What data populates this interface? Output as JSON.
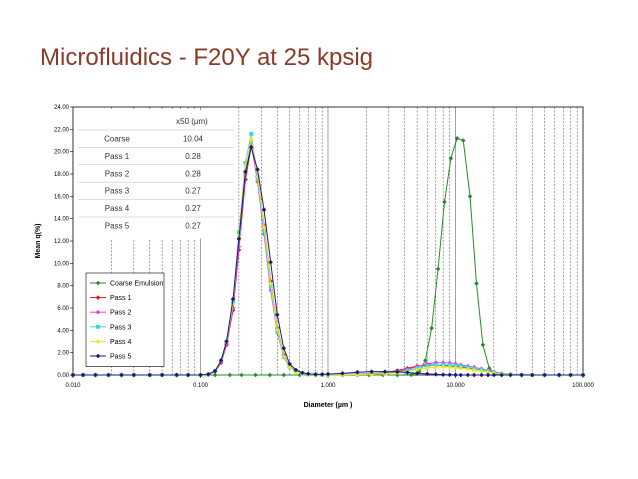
{
  "slide": {
    "title": "Microfluidics - F20Y at 25 kpsig"
  },
  "table": {
    "header": "x50 (µm)",
    "rows": [
      {
        "label": "Coarse",
        "value": "10.04"
      },
      {
        "label": "Pass 1",
        "value": "0.28"
      },
      {
        "label": "Pass 2",
        "value": "0.28"
      },
      {
        "label": "Pass 3",
        "value": "0.27"
      },
      {
        "label": "Pass 4",
        "value": "0.27"
      },
      {
        "label": "Pass 5",
        "value": "0.27"
      }
    ]
  },
  "chart_data": {
    "type": "line",
    "xscale": "log",
    "xlim": [
      0.01,
      100
    ],
    "ylim": [
      0,
      24
    ],
    "xlabel": "Diameter (µm )",
    "ylabel": "Mean q(%)",
    "x_tick_labels": [
      "0.010",
      "0.100",
      "1.000",
      "10.000",
      "100.000"
    ],
    "y_tick_labels": [
      "0.00",
      "2.00",
      "4.00",
      "6.00",
      "8.00",
      "10.00",
      "12.00",
      "14.00",
      "16.00",
      "18.00",
      "20.00",
      "22.00",
      "24.00"
    ],
    "grid": {
      "vertical": true,
      "vertical_style": "dashed",
      "horizontal": false
    },
    "legend_position": "left-middle",
    "series": [
      {
        "name": "Coarse Emulsion",
        "color": "#2a8a2a",
        "marker": "diamond",
        "x": [
          0.01,
          0.012,
          0.015,
          0.019,
          0.024,
          0.03,
          0.04,
          0.05,
          0.065,
          0.08,
          0.1,
          0.13,
          0.17,
          0.21,
          0.27,
          0.35,
          0.45,
          0.6,
          0.8,
          1,
          1.3,
          1.7,
          2.1,
          2.7,
          3.5,
          4.5,
          5.2,
          5.8,
          6.5,
          7.3,
          8.2,
          9.2,
          10.3,
          11.5,
          13,
          14.6,
          16.4,
          18.4,
          20.6,
          23,
          27,
          33,
          40,
          50,
          65,
          80,
          100
        ],
        "y": [
          0,
          0,
          0,
          0,
          0,
          0,
          0,
          0,
          0,
          0,
          0,
          0,
          0,
          0,
          0,
          0,
          0,
          0,
          0,
          0,
          0,
          0,
          0,
          0,
          0,
          0.02,
          0.3,
          1.3,
          4.2,
          9.5,
          15.5,
          19.4,
          21.2,
          21,
          16,
          8.2,
          2.7,
          0.6,
          0.08,
          0,
          0,
          0,
          0,
          0,
          0,
          0,
          0
        ]
      },
      {
        "name": "Pass 1",
        "color": "#d8141c",
        "marker": "diamond",
        "x": [
          0.01,
          0.012,
          0.015,
          0.019,
          0.024,
          0.03,
          0.04,
          0.05,
          0.065,
          0.08,
          0.1,
          0.115,
          0.13,
          0.145,
          0.16,
          0.18,
          0.2,
          0.225,
          0.25,
          0.28,
          0.315,
          0.355,
          0.4,
          0.45,
          0.5,
          0.56,
          0.63,
          0.7,
          0.8,
          0.9,
          1,
          1.3,
          1.7,
          2.2,
          2.8,
          3.5,
          4.2,
          5,
          6,
          7,
          8,
          9,
          10,
          11,
          12.5,
          14,
          16,
          18,
          20,
          23,
          27,
          33,
          40,
          50,
          65,
          80,
          100
        ],
        "y": [
          0,
          0,
          0,
          0,
          0,
          0,
          0,
          0,
          0,
          0,
          0,
          0.05,
          0.3,
          1.1,
          2.7,
          5.8,
          11.2,
          17.5,
          20.5,
          17.8,
          13.4,
          8.4,
          4.2,
          1.8,
          0.75,
          0.35,
          0.15,
          0.07,
          0.04,
          0.03,
          0.03,
          0.05,
          0.08,
          0.12,
          0.2,
          0.4,
          0.6,
          0.8,
          0.9,
          0.9,
          0.85,
          0.8,
          0.75,
          0.7,
          0.6,
          0.5,
          0.4,
          0.3,
          0.2,
          0.1,
          0.04,
          0.01,
          0,
          0,
          0,
          0,
          0
        ]
      },
      {
        "name": "Pass 2",
        "color": "#e23ce2",
        "marker": "diamond",
        "x": [
          0.01,
          0.012,
          0.015,
          0.019,
          0.024,
          0.03,
          0.04,
          0.05,
          0.065,
          0.08,
          0.1,
          0.115,
          0.13,
          0.145,
          0.16,
          0.18,
          0.2,
          0.225,
          0.25,
          0.28,
          0.315,
          0.355,
          0.4,
          0.45,
          0.5,
          0.56,
          0.63,
          0.7,
          0.8,
          0.9,
          1,
          1.3,
          1.7,
          2.2,
          2.8,
          3.5,
          4.2,
          5,
          6,
          7,
          8,
          9,
          10,
          11,
          12.5,
          14,
          16,
          18,
          20,
          23,
          27,
          33,
          40,
          50,
          65,
          80,
          100
        ],
        "y": [
          0,
          0,
          0,
          0,
          0,
          0,
          0,
          0,
          0,
          0,
          0,
          0.05,
          0.3,
          1.2,
          2.8,
          6,
          11.5,
          18,
          20.8,
          17.3,
          12.6,
          7.6,
          3.8,
          1.6,
          0.7,
          0.32,
          0.14,
          0.07,
          0.04,
          0.03,
          0.03,
          0.04,
          0.06,
          0.1,
          0.16,
          0.3,
          0.5,
          0.75,
          1,
          1.1,
          1.1,
          1.08,
          1.0,
          0.9,
          0.8,
          0.7,
          0.55,
          0.42,
          0.3,
          0.15,
          0.06,
          0.02,
          0,
          0,
          0,
          0,
          0
        ]
      },
      {
        "name": "Pass 3",
        "color": "#2ed8e8",
        "marker": "square",
        "x": [
          0.01,
          0.012,
          0.015,
          0.019,
          0.024,
          0.03,
          0.04,
          0.05,
          0.065,
          0.08,
          0.1,
          0.115,
          0.13,
          0.145,
          0.16,
          0.18,
          0.2,
          0.225,
          0.25,
          0.28,
          0.315,
          0.355,
          0.4,
          0.45,
          0.5,
          0.56,
          0.63,
          0.7,
          0.8,
          0.9,
          1,
          1.3,
          1.7,
          2.2,
          2.8,
          3.5,
          4.2,
          5,
          6,
          7,
          8,
          9,
          10,
          11,
          12.5,
          14,
          16,
          18,
          20,
          23,
          27,
          33,
          40,
          50,
          65,
          80,
          100
        ],
        "y": [
          0,
          0,
          0,
          0,
          0,
          0,
          0,
          0,
          0,
          0,
          0,
          0.06,
          0.35,
          1.3,
          3.0,
          6.5,
          12.8,
          19,
          21.6,
          17.6,
          12.9,
          7.9,
          3.9,
          1.6,
          0.7,
          0.3,
          0.13,
          0.06,
          0.03,
          0.02,
          0.02,
          0.03,
          0.05,
          0.08,
          0.14,
          0.25,
          0.4,
          0.6,
          0.8,
          0.9,
          0.92,
          0.9,
          0.85,
          0.78,
          0.68,
          0.58,
          0.45,
          0.33,
          0.22,
          0.1,
          0.04,
          0.01,
          0,
          0,
          0,
          0,
          0
        ]
      },
      {
        "name": "Pass 4",
        "color": "#e8e81c",
        "marker": "triangle",
        "x": [
          0.01,
          0.012,
          0.015,
          0.019,
          0.024,
          0.03,
          0.04,
          0.05,
          0.065,
          0.08,
          0.1,
          0.115,
          0.13,
          0.145,
          0.16,
          0.18,
          0.2,
          0.225,
          0.25,
          0.28,
          0.315,
          0.355,
          0.4,
          0.45,
          0.5,
          0.56,
          0.63,
          0.7,
          0.8,
          0.9,
          1,
          1.3,
          1.7,
          2.2,
          2.8,
          3.5,
          4.2,
          5,
          6,
          7,
          8,
          9,
          10,
          11,
          12.5,
          14,
          16,
          18,
          20,
          23,
          27,
          33,
          40,
          50,
          65,
          80,
          100
        ],
        "y": [
          0,
          0,
          0,
          0,
          0,
          0,
          0,
          0,
          0,
          0,
          0,
          0.06,
          0.35,
          1.3,
          3.0,
          6.4,
          12.5,
          18.8,
          21.2,
          17.8,
          13.3,
          8.2,
          4.1,
          1.7,
          0.72,
          0.3,
          0.13,
          0.06,
          0.03,
          0.02,
          0.02,
          0.03,
          0.04,
          0.07,
          0.12,
          0.2,
          0.32,
          0.5,
          0.65,
          0.72,
          0.75,
          0.72,
          0.68,
          0.62,
          0.55,
          0.46,
          0.36,
          0.27,
          0.18,
          0.08,
          0.03,
          0.01,
          0,
          0,
          0,
          0,
          0
        ]
      },
      {
        "name": "Pass 5",
        "color": "#141c7a",
        "marker": "diamond",
        "x": [
          0.01,
          0.012,
          0.015,
          0.019,
          0.024,
          0.03,
          0.04,
          0.05,
          0.065,
          0.08,
          0.1,
          0.115,
          0.13,
          0.145,
          0.16,
          0.18,
          0.2,
          0.225,
          0.25,
          0.28,
          0.315,
          0.355,
          0.4,
          0.45,
          0.5,
          0.56,
          0.63,
          0.7,
          0.8,
          0.9,
          1,
          1.3,
          1.7,
          2.2,
          2.8,
          3.5,
          4.2,
          5,
          6,
          7,
          8,
          9,
          10,
          11,
          12.5,
          14,
          16,
          18,
          20,
          23,
          27,
          33,
          40,
          50,
          65,
          80,
          100
        ],
        "y": [
          0,
          0,
          0,
          0,
          0,
          0,
          0,
          0,
          0,
          0,
          0,
          0.06,
          0.35,
          1.3,
          3.0,
          6.8,
          12.2,
          18.2,
          20.4,
          18.4,
          14.8,
          10.1,
          5.4,
          2.4,
          1.0,
          0.45,
          0.2,
          0.1,
          0.06,
          0.06,
          0.08,
          0.15,
          0.25,
          0.3,
          0.3,
          0.28,
          0.22,
          0.15,
          0.1,
          0.06,
          0.03,
          0.02,
          0.01,
          0,
          0,
          0,
          0,
          0,
          0,
          0,
          0,
          0,
          0,
          0,
          0,
          0,
          0
        ]
      }
    ]
  }
}
